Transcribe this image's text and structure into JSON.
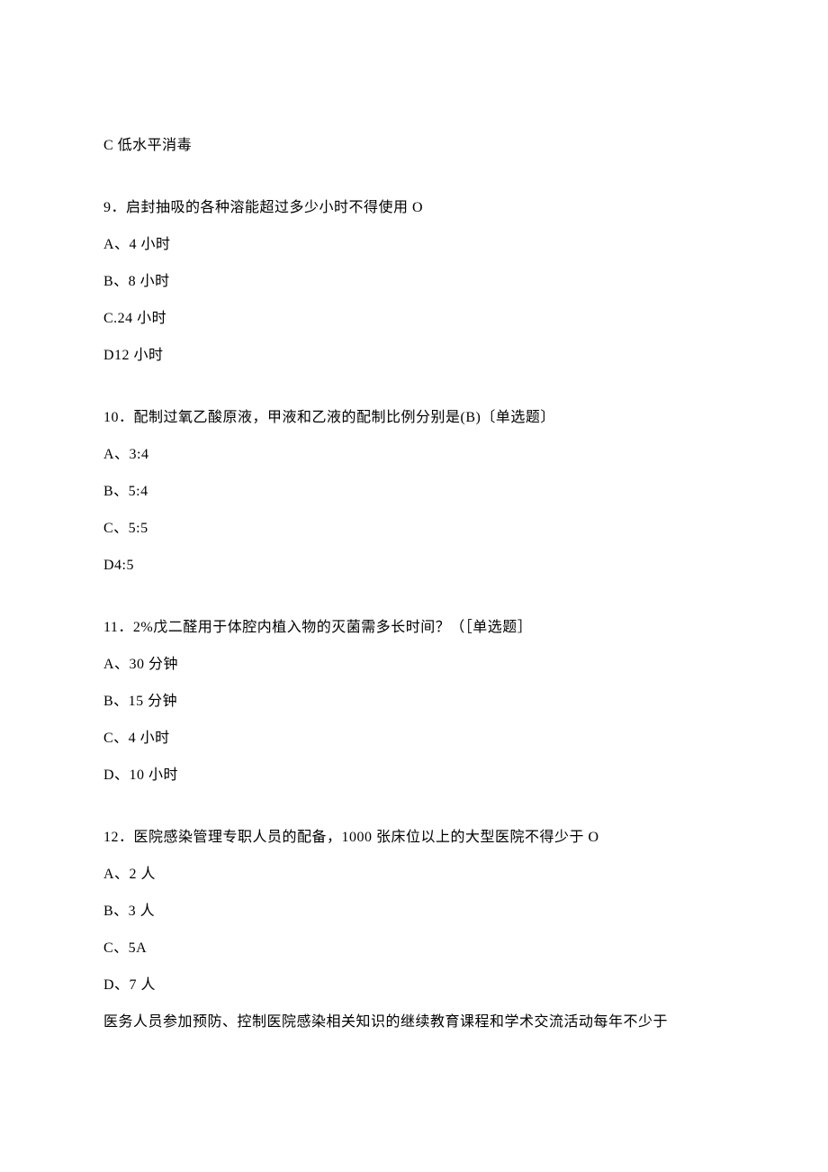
{
  "partialAnswer": "C 低水平消毒",
  "questions": [
    {
      "num": "9",
      "text": "．启封抽吸的各种溶能超过多少小时不得使用 O",
      "options": [
        "A、4 小时",
        "B、8 小时",
        "C.24 小时",
        "D12 小时"
      ]
    },
    {
      "num": "10",
      "text": "．配制过氧乙酸原液，甲液和乙液的配制比例分别是(B)〔单选题〕",
      "options": [
        "A、3:4",
        "B、5:4",
        "C、5:5",
        "D4:5"
      ]
    },
    {
      "num": "11",
      "text": "．2%戊二醛用于体腔内植入物的灭菌需多长时间？（［单选题］",
      "options": [
        "A、30 分钟",
        "B、15 分钟",
        "C、4 小时",
        "D、10 小时"
      ]
    },
    {
      "num": "12",
      "text": "．医院感染管理专职人员的配备，1000 张床位以上的大型医院不得少于 O",
      "options": [
        "A、2 人",
        "B、3 人",
        "C、5A",
        "D、7 人"
      ]
    }
  ],
  "trailingText": "医务人员参加预防、控制医院感染相关知识的继续教育课程和学术交流活动每年不少于",
  "styles": {
    "fontSize": 16,
    "textColor": "#000000",
    "backgroundColor": "#ffffff",
    "lineSpacing": 17,
    "questionSpacing": 45
  }
}
